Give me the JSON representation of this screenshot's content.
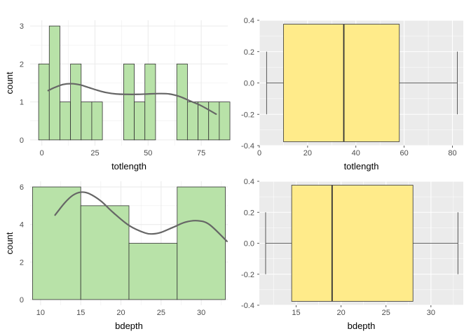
{
  "colors": {
    "hist_fill": "#b8e2a8",
    "hist_stroke": "#333333",
    "density_line": "#666666",
    "box_fill": "#ffeb8a",
    "box_stroke": "#333333",
    "panel_grey": "#ebebeb",
    "grid_minimal": "#ebebeb",
    "grid_grey": "#ffffff",
    "tick_text": "#4d4d4d"
  },
  "chart_data": [
    {
      "type": "bar",
      "subtype": "histogram",
      "theme": "minimal",
      "title": "",
      "xlabel": "totlength",
      "ylabel": "count",
      "xlim": [
        -5.5,
        87.5
      ],
      "ylim": [
        -0.15,
        3.15
      ],
      "xticks": [
        0,
        25,
        50,
        75
      ],
      "yticks": [
        0,
        1,
        2,
        3
      ],
      "bins": [
        {
          "x0": -1.5,
          "x1": 3.5,
          "count": 2
        },
        {
          "x0": 3.5,
          "x1": 8.5,
          "count": 3
        },
        {
          "x0": 8.5,
          "x1": 13.5,
          "count": 1
        },
        {
          "x0": 13.5,
          "x1": 18.5,
          "count": 2
        },
        {
          "x0": 18.5,
          "x1": 23.5,
          "count": 1
        },
        {
          "x0": 23.5,
          "x1": 28.5,
          "count": 1
        },
        {
          "x0": 28.5,
          "x1": 33.5,
          "count": 0
        },
        {
          "x0": 33.5,
          "x1": 38.5,
          "count": 0
        },
        {
          "x0": 38.5,
          "x1": 43.5,
          "count": 2
        },
        {
          "x0": 43.5,
          "x1": 48.5,
          "count": 1
        },
        {
          "x0": 48.5,
          "x1": 53.5,
          "count": 2
        },
        {
          "x0": 53.5,
          "x1": 58.5,
          "count": 0
        },
        {
          "x0": 58.5,
          "x1": 63.5,
          "count": 0
        },
        {
          "x0": 63.5,
          "x1": 68.5,
          "count": 2
        },
        {
          "x0": 68.5,
          "x1": 73.5,
          "count": 1
        },
        {
          "x0": 73.5,
          "x1": 78.5,
          "count": 1
        },
        {
          "x0": 78.5,
          "x1": 83.5,
          "count": 1
        },
        {
          "x0": 83.5,
          "x1": 88.5,
          "count": 1
        }
      ],
      "density": {
        "x": [
          3,
          6,
          10,
          14,
          18,
          22,
          26,
          30,
          35,
          40,
          45,
          50,
          55,
          60,
          65,
          70,
          75,
          82
        ],
        "y": [
          1.3,
          1.38,
          1.46,
          1.48,
          1.45,
          1.38,
          1.31,
          1.25,
          1.21,
          1.2,
          1.2,
          1.21,
          1.22,
          1.21,
          1.14,
          1.02,
          0.9,
          0.68
        ]
      }
    },
    {
      "type": "box",
      "theme": "grey",
      "orientation": "horizontal",
      "title": "",
      "xlabel": "totlength",
      "ylabel": "",
      "xlim": [
        0,
        84.5
      ],
      "ylim": [
        -0.4,
        0.4
      ],
      "xticks": [
        0,
        20,
        40,
        60,
        80
      ],
      "yticks": [
        -0.4,
        -0.2,
        0.0,
        0.2,
        0.4
      ],
      "ytick_labels": [
        "-0.4",
        "-0.2",
        "0.0",
        "0.2",
        "0.4"
      ],
      "box": {
        "min": 3,
        "q1": 10,
        "median": 35,
        "q3": 58,
        "max": 82
      },
      "box_halfwidth": 0.375,
      "cap_halfwidth": 0.2
    },
    {
      "type": "bar",
      "subtype": "histogram",
      "theme": "minimal",
      "title": "",
      "xlabel": "bdepth",
      "ylabel": "count",
      "xlim": [
        8.7,
        33.3
      ],
      "ylim": [
        -0.3,
        6.3
      ],
      "xticks": [
        10,
        15,
        20,
        25,
        30
      ],
      "yticks": [
        0,
        2,
        4,
        6
      ],
      "bins": [
        {
          "x0": 9,
          "x1": 15,
          "count": 6
        },
        {
          "x0": 15,
          "x1": 21,
          "count": 5
        },
        {
          "x0": 21,
          "x1": 27,
          "count": 3
        },
        {
          "x0": 27,
          "x1": 33,
          "count": 6
        }
      ],
      "density": {
        "x": [
          11.8,
          13,
          14,
          15,
          16,
          17.5,
          19,
          21,
          23,
          24,
          25,
          26.5,
          28,
          29.5,
          31,
          33.2
        ],
        "y": [
          4.5,
          5.15,
          5.55,
          5.72,
          5.65,
          5.25,
          4.65,
          3.95,
          3.55,
          3.5,
          3.58,
          3.85,
          4.12,
          4.2,
          4.0,
          3.1
        ]
      }
    },
    {
      "type": "box",
      "theme": "grey",
      "orientation": "horizontal",
      "title": "",
      "xlabel": "bdepth",
      "ylabel": "",
      "xlim": [
        10.9,
        33.6
      ],
      "ylim": [
        -0.4,
        0.4
      ],
      "xticks": [
        15,
        20,
        25,
        30
      ],
      "yticks": [
        -0.4,
        -0.2,
        0.0,
        0.2,
        0.4
      ],
      "ytick_labels": [
        "-0.4",
        "-0.2",
        "0.0",
        "0.2",
        "0.4"
      ],
      "box": {
        "min": 11.6,
        "q1": 14.5,
        "median": 19,
        "q3": 28,
        "max": 33
      },
      "box_halfwidth": 0.375,
      "cap_halfwidth": 0.2
    }
  ]
}
